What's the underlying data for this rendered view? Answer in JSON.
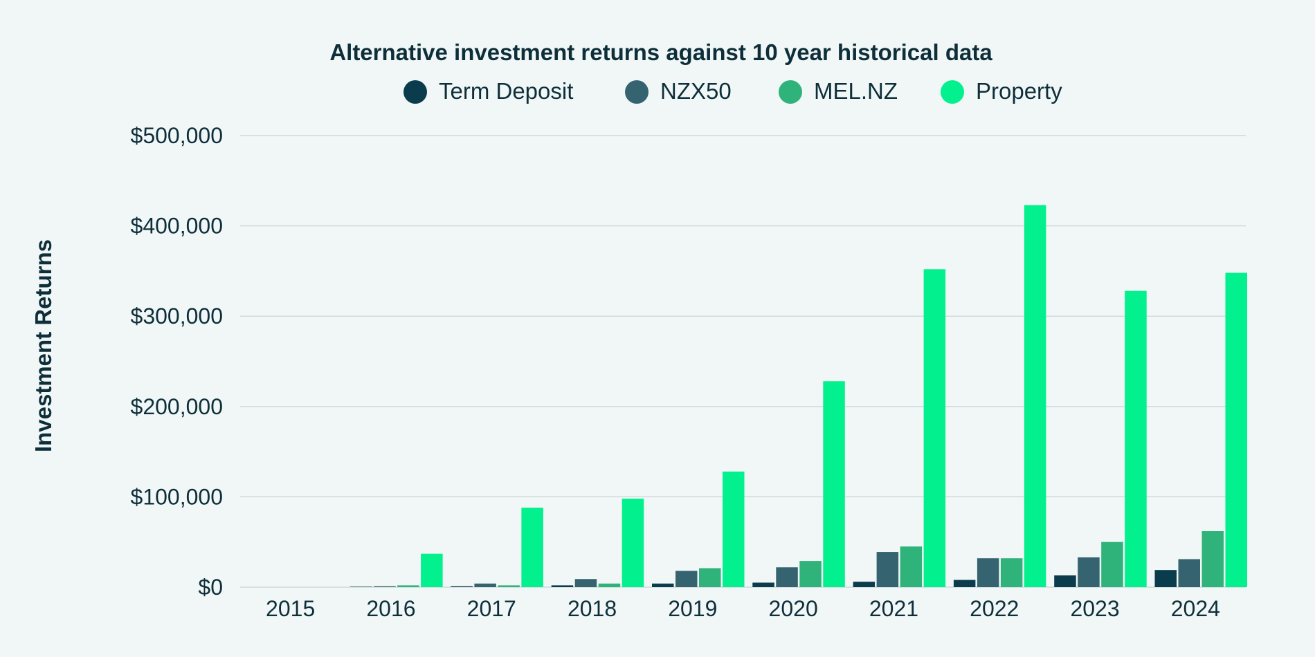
{
  "chart_data": {
    "type": "bar",
    "title": "Alternative investment returns against 10 year historical data",
    "ylabel": "Investment Returns",
    "xlabel": "",
    "categories": [
      "2015",
      "2016",
      "2017",
      "2018",
      "2019",
      "2020",
      "2021",
      "2022",
      "2023",
      "2024"
    ],
    "ylim": [
      0,
      500000
    ],
    "yticks": [
      0,
      100000,
      200000,
      300000,
      400000,
      500000
    ],
    "ytick_labels": [
      "$0",
      "$100,000",
      "$200,000",
      "$300,000",
      "$400,000",
      "$500,000"
    ],
    "grid": true,
    "legend_position": "top",
    "series": [
      {
        "name": "Term Deposit",
        "color": "#0b3c4d",
        "values": [
          0,
          500,
          1000,
          2000,
          4000,
          5000,
          6000,
          8000,
          13000,
          19000
        ]
      },
      {
        "name": "NZX50",
        "color": "#356470",
        "values": [
          0,
          1000,
          4000,
          9000,
          18000,
          22000,
          39000,
          32000,
          33000,
          31000
        ]
      },
      {
        "name": "MEL.NZ",
        "color": "#2fb37a",
        "values": [
          0,
          2000,
          2000,
          4000,
          21000,
          29000,
          45000,
          32000,
          50000,
          62000
        ]
      },
      {
        "name": "Property",
        "color": "#03f08e",
        "values": [
          0,
          37000,
          88000,
          98000,
          128000,
          228000,
          352000,
          423000,
          328000,
          348000
        ]
      }
    ]
  },
  "colors": {
    "text": "#0e2f3a",
    "grid": "#c9d2d4",
    "background": "#f1f7f7"
  }
}
